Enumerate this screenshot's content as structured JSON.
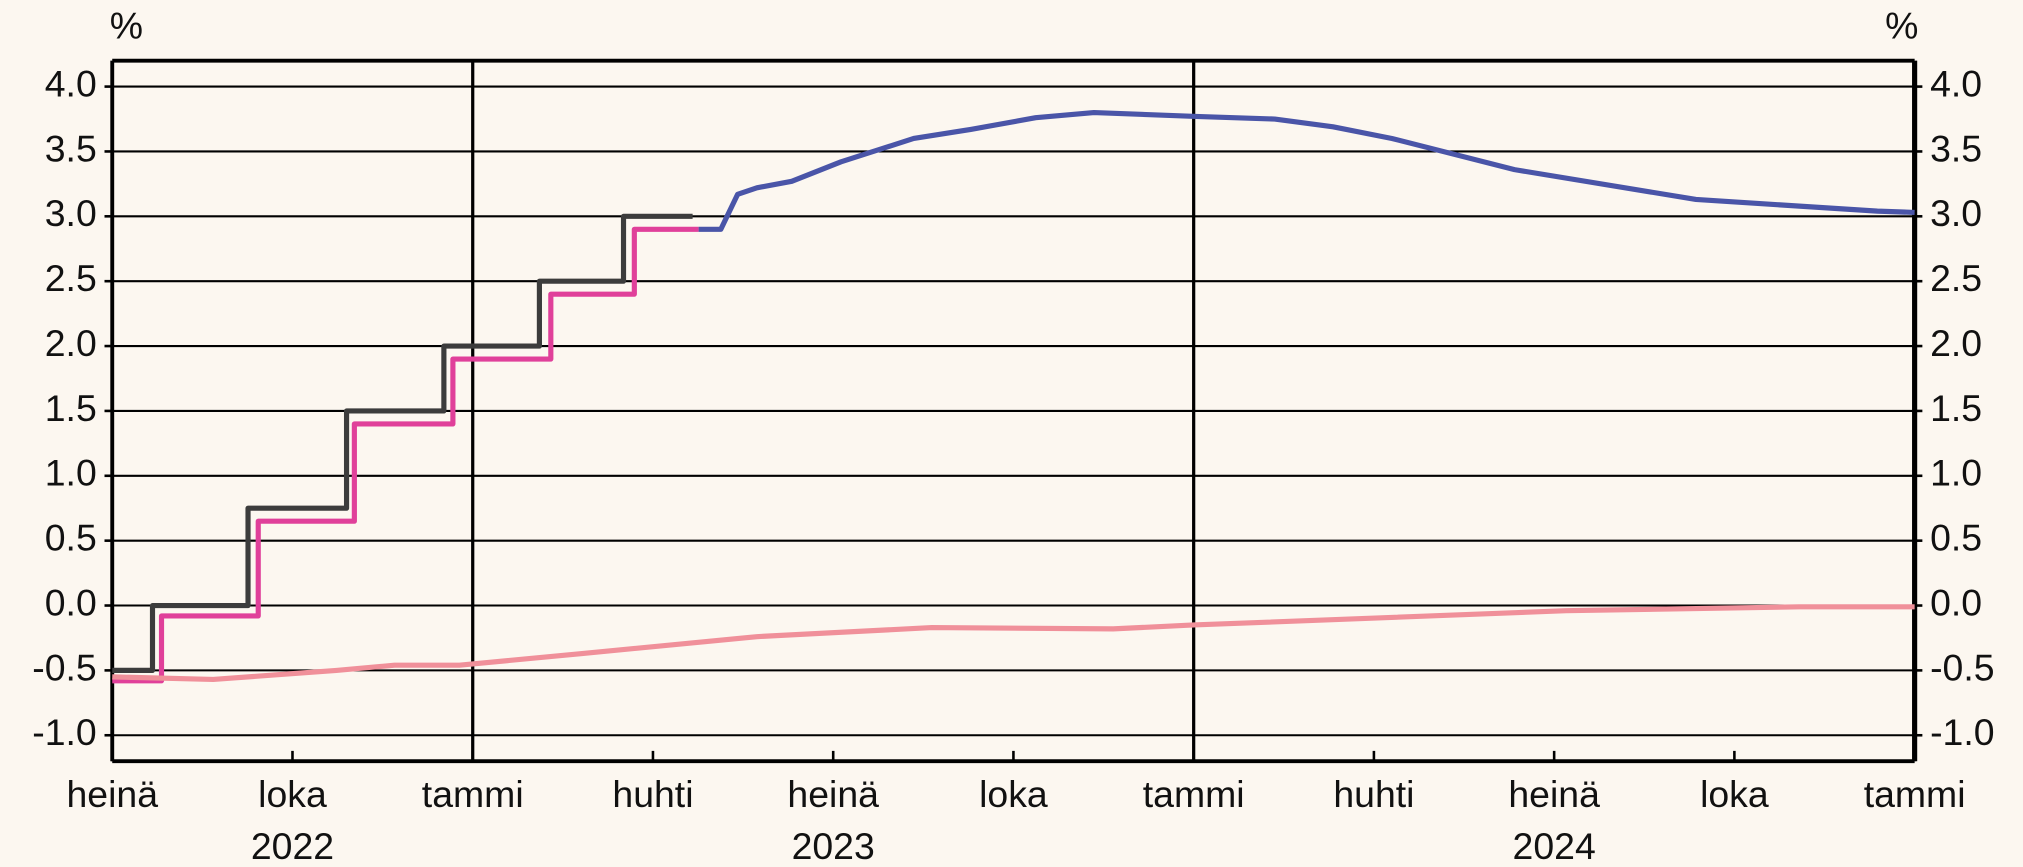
{
  "chart_data": {
    "type": "line",
    "ylabel": "%",
    "y2label": "%",
    "xlim": [
      0,
      30
    ],
    "xticks": [
      {
        "value": 0,
        "label": "heinä"
      },
      {
        "value": 3,
        "label": "loka"
      },
      {
        "value": 6,
        "label": "tammi"
      },
      {
        "value": 9,
        "label": "huhti"
      },
      {
        "value": 12,
        "label": "heinä"
      },
      {
        "value": 15,
        "label": "loka"
      },
      {
        "value": 18,
        "label": "tammi"
      },
      {
        "value": 21,
        "label": "huhti"
      },
      {
        "value": 24,
        "label": "heinä"
      },
      {
        "value": 27,
        "label": "loka"
      },
      {
        "value": 30,
        "label": "tammi"
      }
    ],
    "xticks2": [
      {
        "value": 3,
        "label": "2022"
      },
      {
        "value": 12,
        "label": "2023"
      },
      {
        "value": 24,
        "label": "2024"
      }
    ],
    "xgrid": [
      6,
      18
    ],
    "ylim": [
      -1.2,
      4.2
    ],
    "yticks": [
      {
        "value": 4,
        "label": "4.0"
      },
      3.5,
      {
        "value": 3,
        "label": "3.0"
      },
      2.5,
      {
        "value": 2,
        "label": "2.0"
      },
      1.5,
      {
        "value": 1,
        "label": "1.0"
      },
      0.5,
      {
        "value": 0,
        "label": "0.0"
      },
      -0.5,
      {
        "value": -1,
        "label": "-1.0"
      }
    ],
    "y2lim": [
      -1.2,
      4.2
    ],
    "y2ticks": [
      {
        "value": 4,
        "label": "4.0"
      },
      3.5,
      {
        "value": 3,
        "label": "3.0"
      },
      2.5,
      {
        "value": 2,
        "label": "2.0"
      },
      1.5,
      {
        "value": 1,
        "label": "1.0"
      },
      0.5,
      {
        "value": 0,
        "label": "0.0"
      },
      -0.5,
      {
        "value": -1,
        "label": "-1.0"
      }
    ],
    "grid": true,
    "series": [
      {
        "color": "#3c3c3c",
        "x": [
          0,
          0.67,
          0.67,
          2.26,
          2.26,
          3.9,
          3.9,
          5.52,
          5.52,
          7.11,
          7.11,
          8.51,
          8.51,
          9.66
        ],
        "values": [
          -0.5,
          -0.5,
          0,
          0,
          0.75,
          0.75,
          1.5,
          1.5,
          2,
          2,
          2.5,
          2.5,
          3,
          3
        ]
      },
      {
        "color": "#e0409a",
        "x": [
          0,
          0.82,
          0.82,
          2.43,
          2.43,
          4.03,
          4.03,
          5.67,
          5.67,
          7.3,
          7.3,
          8.69,
          8.69,
          9.76
        ],
        "values": [
          -0.58,
          -0.58,
          -0.08,
          -0.08,
          0.65,
          0.65,
          1.4,
          1.4,
          1.9,
          1.9,
          2.4,
          2.4,
          2.9,
          2.9
        ]
      },
      {
        "color": "#4a55a8",
        "x": [
          9.76,
          10.13,
          10.41,
          10.73,
          11.31,
          12.13,
          13.34,
          14.29,
          15.37,
          16.34,
          18.04,
          19.35,
          20.32,
          21.3,
          23.34,
          26.36,
          29.38,
          30
        ],
        "values": [
          2.9,
          2.9,
          3.17,
          3.22,
          3.27,
          3.42,
          3.6,
          3.67,
          3.76,
          3.8,
          3.77,
          3.75,
          3.69,
          3.6,
          3.36,
          3.13,
          3.04,
          3.03
        ]
      },
      {
        "color": "#f0909a",
        "x": [
          0,
          1.68,
          3.73,
          4.7,
          5.78,
          7.82,
          10.73,
          13.64,
          16.66,
          18,
          24.2,
          28.08,
          30
        ],
        "values": [
          -0.55,
          -0.57,
          -0.5,
          -0.46,
          -0.46,
          -0.37,
          -0.24,
          -0.17,
          -0.18,
          -0.15,
          -0.04,
          -0.01,
          -0.01
        ]
      }
    ]
  }
}
